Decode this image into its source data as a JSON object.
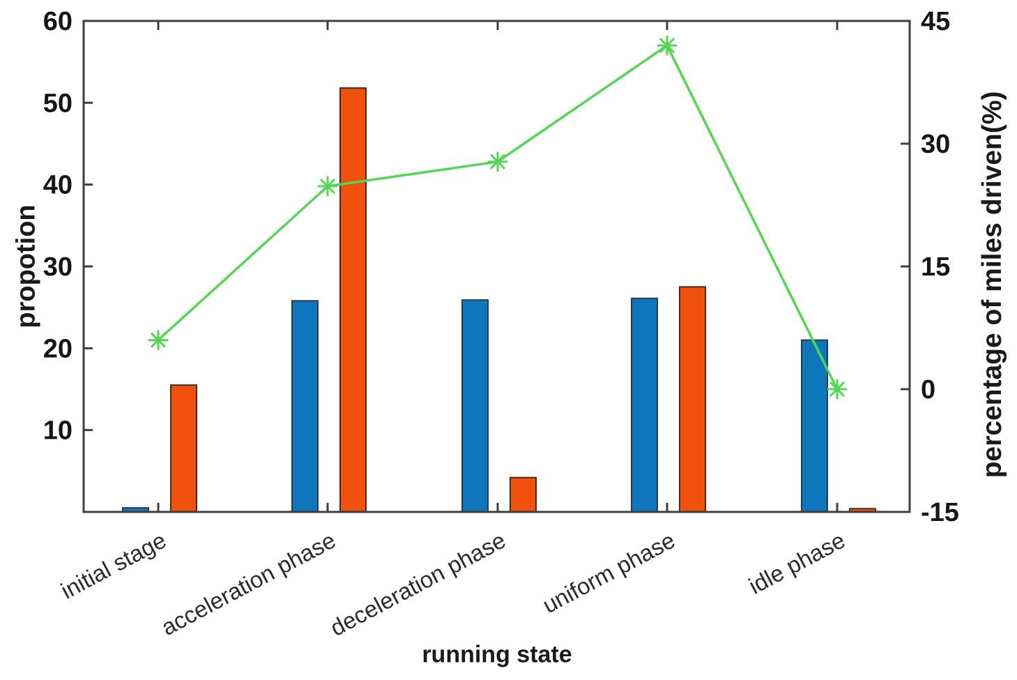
{
  "chart_data": {
    "type": "bar",
    "title": "",
    "categories": [
      "initial stage",
      "acceleration phase",
      "deceleration phase",
      "uniform phase",
      "idle phase"
    ],
    "series": [
      {
        "name": "blue-bars",
        "type": "bar",
        "axis": "left",
        "color": "#0e76bd",
        "edge_color": "#2e3b44",
        "values": [
          0.5,
          25.8,
          25.9,
          26.1,
          21.0
        ]
      },
      {
        "name": "orange-bars",
        "type": "bar",
        "axis": "left",
        "color": "#f2500d",
        "edge_color": "#4a2a1a",
        "values": [
          15.5,
          51.8,
          4.2,
          27.5,
          0.4
        ]
      },
      {
        "name": "green-line",
        "type": "line",
        "axis": "right",
        "color": "#53d653",
        "marker": "asterisk",
        "values": [
          6.0,
          24.8,
          27.8,
          42.0,
          0.0
        ]
      }
    ],
    "xlabel": "running state",
    "left_axis": {
      "label": "propotion",
      "range": [
        0,
        60
      ],
      "ticks": [
        10,
        20,
        30,
        40,
        50,
        60
      ]
    },
    "right_axis": {
      "label": "percentage of miles driven(%)",
      "range": [
        -15,
        45
      ],
      "ticks": [
        -15,
        0,
        15,
        30,
        45
      ]
    },
    "grid": false,
    "legend": false,
    "frame_color": "#3f3f3f",
    "text_color": "#161616"
  }
}
